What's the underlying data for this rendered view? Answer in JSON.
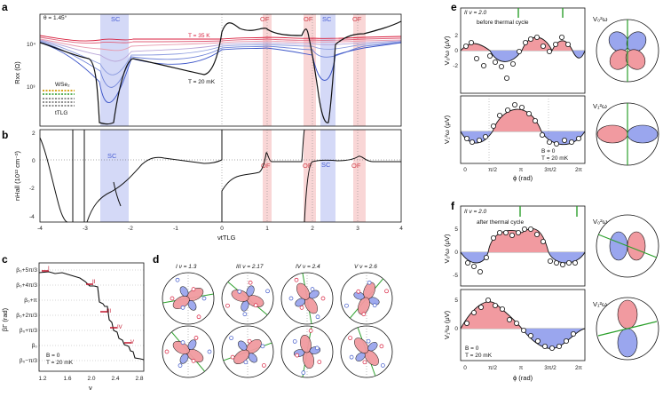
{
  "panels": {
    "a": {
      "label": "a",
      "angle": "θ = 1.45°",
      "ylabel": "Rxx (Ω)",
      "yticks": [
        "10⁴",
        "10³"
      ],
      "temp_hi": "T = 35 K",
      "temp_lo": "T = 20 mK",
      "sc": [
        "SC",
        "SC"
      ],
      "of": [
        "OF",
        "OF",
        "OF"
      ],
      "inset_top": "WSe₂",
      "inset_bottom": "tTLG"
    },
    "b": {
      "label": "b",
      "ylabel": "nHall (10¹² cm⁻²)",
      "yticks": [
        "2",
        "0",
        "-2",
        "-4"
      ],
      "xticks": [
        "-4",
        "-3",
        "-2",
        "-1",
        "0",
        "1",
        "2",
        "3",
        "4"
      ],
      "xlabel": "νtTLG",
      "sc": [
        "SC",
        "SC"
      ],
      "of": [
        "OF",
        "OF",
        "OF"
      ]
    },
    "c": {
      "label": "c",
      "ylabel": "βΓ (rad)",
      "yticks": [
        "β₀+5π/3",
        "β₀+4π/3",
        "β₀+π",
        "β₀+2π/3",
        "β₀+π/3",
        "β₀",
        "β₀−π/3"
      ],
      "xticks": [
        "1.2",
        "1.6",
        "2.0",
        "2.4",
        "2.8"
      ],
      "xlabel": "ν",
      "note1": "B = 0",
      "note2": "T = 20 mK",
      "markers": [
        "I",
        "II",
        "III",
        "IV",
        "V"
      ]
    },
    "d": {
      "label": "d",
      "headers": [
        "I  ν = 1.3",
        "III  ν = 2.17",
        "IV  ν = 2.4",
        "V  ν = 2.6"
      ]
    },
    "e": {
      "label": "e",
      "title": "II  ν = 2.0",
      "note": "before thermal cycle",
      "ylabel_top": "V₀²ω (μV)",
      "ylabel_bot": "V₁²ω (μV)",
      "yticks": [
        "2",
        "0",
        "-2"
      ],
      "xticks": [
        "0",
        "π/2",
        "π",
        "3π/2",
        "2π"
      ],
      "xlabel": "ϕ (rad)",
      "note1": "B = 0",
      "note2": "T = 20 mK",
      "polar_top": "V₀²ω",
      "polar_bot": "V₁²ω"
    },
    "f": {
      "label": "f",
      "title": "II  ν = 2.0",
      "note": "after thermal cycle",
      "ylabel_top": "V₀²ω (μV)",
      "ylabel_bot": "V₁²ω (μV)",
      "yticks_top": [
        "5",
        "0",
        "-5"
      ],
      "yticks_bot": [
        "5",
        "0"
      ],
      "xticks": [
        "0",
        "π/2",
        "π",
        "3π/2",
        "2π"
      ],
      "xlabel": "ϕ (rad)",
      "note1": "B = 0",
      "note2": "T = 20 mK",
      "polar_top": "V₀²ω",
      "polar_bot": "V₁²ω"
    }
  },
  "colors": {
    "sc_band": "#c9cff5",
    "of_band": "#f8d2d2",
    "red_fill": "#f19aa0",
    "blue_fill": "#9aa6ee",
    "green": "#2ca02c"
  }
}
